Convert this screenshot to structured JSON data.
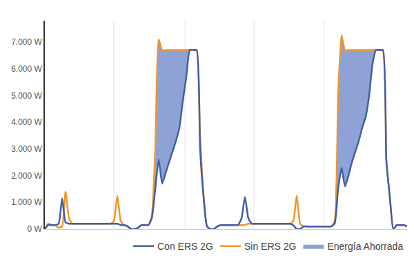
{
  "chart_data": {
    "type": "line",
    "categories": [
      null,
      null,
      null,
      null,
      null,
      null,
      null,
      null,
      null,
      null,
      null,
      null,
      null,
      null,
      null,
      null,
      null,
      null,
      null,
      null,
      null,
      null,
      null,
      null,
      null,
      null,
      null,
      null,
      null,
      null,
      null,
      null,
      null,
      null,
      null,
      null,
      null,
      null,
      null,
      null,
      null,
      null,
      null,
      null,
      null,
      null,
      null,
      null,
      null,
      null,
      null,
      null,
      null,
      null,
      null,
      null,
      null,
      null,
      null,
      null,
      null,
      null,
      null,
      null,
      null,
      null,
      null,
      null,
      null,
      null,
      null,
      null,
      null,
      null,
      null,
      null,
      null,
      null,
      null,
      null,
      null,
      null,
      null,
      null,
      null,
      null,
      null,
      null,
      null,
      null,
      null,
      null,
      null,
      null,
      null,
      null,
      null,
      null,
      null,
      null,
      null,
      null,
      null,
      null,
      null,
      null
    ],
    "series": [
      {
        "name": "Con ERS 2G",
        "color": "#3f5fa6",
        "type": "line",
        "values": [
          0,
          150,
          150,
          150,
          200,
          1150,
          250,
          200,
          200,
          200,
          200,
          200,
          200,
          200,
          200,
          200,
          200,
          200,
          200,
          200,
          200,
          200,
          150,
          150,
          100,
          0,
          0,
          50,
          150,
          150,
          150,
          400,
          1500,
          2600,
          1700,
          2100,
          2500,
          2900,
          3300,
          3800,
          4800,
          5700,
          6700,
          6700,
          6700,
          3000,
          1200,
          100,
          0,
          0,
          100,
          150,
          150,
          150,
          150,
          150,
          150,
          400,
          1200,
          400,
          200,
          200,
          200,
          200,
          200,
          200,
          200,
          200,
          200,
          200,
          200,
          200,
          150,
          0,
          0,
          100,
          100,
          100,
          100,
          100,
          100,
          100,
          100,
          100,
          200,
          1500,
          2300,
          1600,
          2000,
          2500,
          2900,
          3300,
          3800,
          4200,
          5000,
          6200,
          6700,
          6700,
          6700,
          2500,
          1200,
          0,
          150,
          150,
          150,
          100
        ]
      },
      {
        "name": "Sin ERS 2G",
        "color": "#f0952e",
        "type": "line",
        "values": [
          0,
          200,
          150,
          150,
          50,
          100,
          1400,
          400,
          200,
          200,
          200,
          200,
          200,
          200,
          200,
          200,
          200,
          200,
          200,
          200,
          300,
          1250,
          300,
          150,
          100,
          0,
          0,
          50,
          150,
          150,
          150,
          500,
          3000,
          7100,
          6700,
          6700,
          6700,
          6700,
          6700,
          6700,
          6700,
          6700,
          6700,
          6700,
          6700,
          3500,
          1300,
          100,
          0,
          0,
          100,
          150,
          150,
          150,
          150,
          150,
          150,
          150,
          150,
          200,
          200,
          200,
          200,
          200,
          200,
          200,
          200,
          200,
          200,
          200,
          200,
          200,
          300,
          1250,
          200,
          100,
          100,
          100,
          100,
          100,
          100,
          100,
          100,
          100,
          300,
          5000,
          7250,
          6700,
          6700,
          6700,
          6700,
          6700,
          6700,
          6700,
          6700,
          6700,
          6700,
          6700,
          6700,
          2600,
          1200,
          0,
          150,
          150,
          150,
          100
        ]
      },
      {
        "name": "Energía Ahorrada",
        "color": "#8fa2d6",
        "type": "area",
        "values": [
          0,
          0,
          0,
          0,
          0,
          0,
          0,
          0,
          0,
          0,
          0,
          0,
          0,
          0,
          0,
          0,
          0,
          0,
          0,
          0,
          0,
          0,
          0,
          0,
          0,
          0,
          0,
          0,
          0,
          0,
          0,
          100,
          1500,
          4500,
          5000,
          4600,
          4200,
          3800,
          3400,
          2900,
          1900,
          1000,
          0,
          0,
          0,
          500,
          100,
          0,
          0,
          0,
          0,
          0,
          0,
          0,
          0,
          0,
          0,
          0,
          0,
          0,
          0,
          0,
          0,
          0,
          0,
          0,
          0,
          0,
          0,
          0,
          0,
          0,
          0,
          0,
          0,
          0,
          0,
          0,
          0,
          0,
          0,
          0,
          0,
          0,
          100,
          3500,
          4950,
          5100,
          4700,
          4200,
          3800,
          3400,
          2900,
          2500,
          1700,
          500,
          0,
          0,
          0,
          100,
          0,
          0,
          0,
          0,
          0,
          0
        ]
      }
    ],
    "ylim": [
      0,
      7800
    ],
    "yticks": [
      {
        "value": 0,
        "label": "0 W"
      },
      {
        "value": 1000,
        "label": "1.000 W"
      },
      {
        "value": 2000,
        "label": "2.000 W"
      },
      {
        "value": 3000,
        "label": "3.000 W"
      },
      {
        "value": 4000,
        "label": "4.000 W"
      },
      {
        "value": 5000,
        "label": "5.000 W"
      },
      {
        "value": 6000,
        "label": "6.000 W"
      },
      {
        "value": 7000,
        "label": "7.000 W"
      }
    ],
    "grid": true,
    "legend": "bottom-right",
    "tick_labels": "y"
  }
}
